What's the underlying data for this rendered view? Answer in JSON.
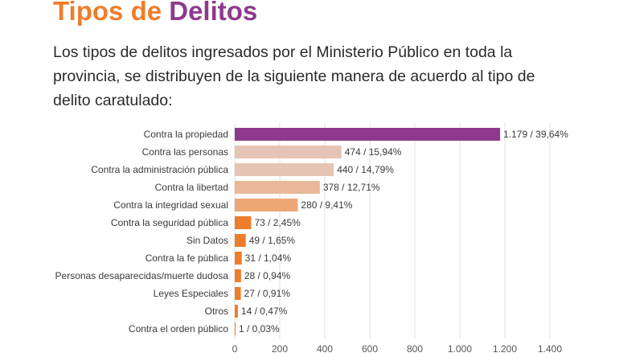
{
  "header": {
    "title_part1": "Tipos de",
    "title_part2": "Delitos",
    "intro": "Los tipos de delitos ingresados por el Ministerio Público en toda la provincia, se distribuyen de la siguiente manera de acuerdo al tipo de delito caratulado:"
  },
  "colors": {
    "title_orange": "#ee7d2b",
    "title_purple": "#8e3a8c",
    "bar_top": "#8e3a8c",
    "bar_light": "#e6c4b4",
    "bar_medium": "#eda676",
    "bar_orange": "#ee7d2b"
  },
  "chart_data": {
    "type": "bar",
    "orientation": "horizontal",
    "title": "",
    "xlabel": "",
    "ylabel": "",
    "xlim": [
      0,
      1400
    ],
    "xticks": [
      "0",
      "200",
      "400",
      "600",
      "800",
      "1.000",
      "1.200",
      "1.400"
    ],
    "grid": true,
    "categories": [
      "Contra la propiedad",
      "Contra las personas",
      "Contra la administración pública",
      "Contra la libertad",
      "Contra la integridad sexual",
      "Contra la seguridad pública",
      "Sin Datos",
      "Contra la fe pública",
      "Personas desaparecidas/muerte dudosa",
      "Leyes Especiales",
      "Otros",
      "Contra el orden público"
    ],
    "values": [
      1179,
      474,
      440,
      378,
      280,
      73,
      49,
      31,
      28,
      27,
      14,
      1
    ],
    "data_labels": [
      "1.179 / 39,64%",
      "474 / 15,94%",
      "440 / 14,79%",
      "378 / 12,71%",
      "280 / 9,41%",
      "73 / 2,45%",
      "49 / 1,65%",
      "31 / 1,04%",
      "28 / 0,94%",
      "27 / 0,91%",
      "14 / 0,47%",
      "1 / 0,03%"
    ],
    "bar_colors": [
      "#8e3a8c",
      "#e6c4b4",
      "#e6c4b4",
      "#e9b89a",
      "#eda676",
      "#ee7d2b",
      "#ee7d2b",
      "#ee7d2b",
      "#ee7d2b",
      "#ee7d2b",
      "#ee7d2b",
      "#ee7d2b"
    ]
  }
}
